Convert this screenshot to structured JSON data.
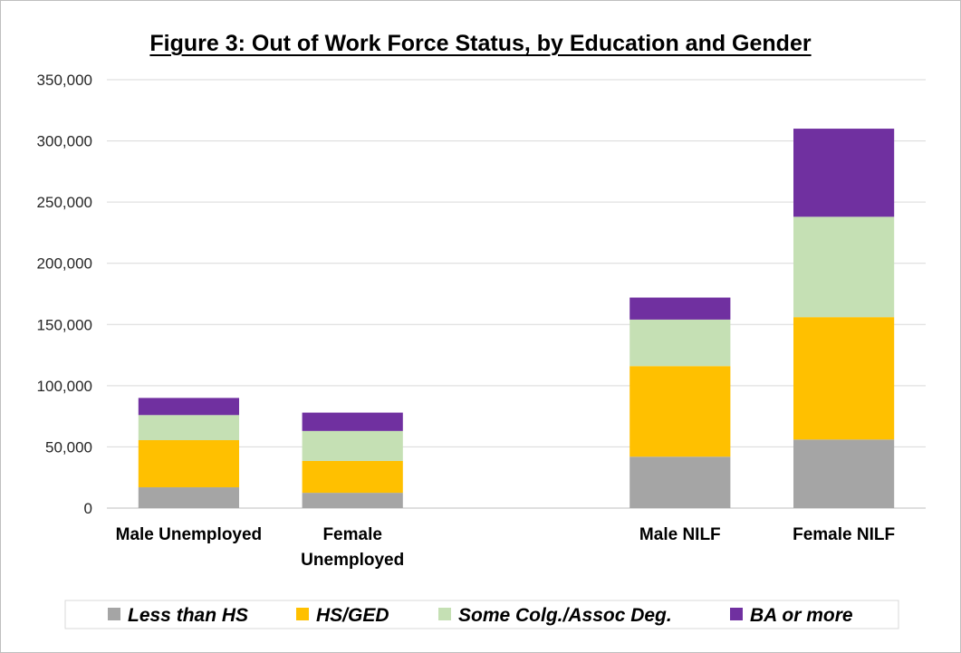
{
  "chart_data": {
    "type": "bar",
    "stacked": true,
    "title": "Figure 3: Out of Work Force Status, by Education and Gender",
    "categories": [
      [
        "Male Unemployed"
      ],
      [
        "Female",
        "Unemployed"
      ],
      [],
      [
        "Male NILF"
      ],
      [
        "Female NILF"
      ]
    ],
    "series": [
      {
        "name": "Less than HS",
        "color": "#a5a5a5",
        "values": [
          17000,
          12500,
          null,
          42000,
          56000
        ]
      },
      {
        "name": "HS/GED",
        "color": "#ffc000",
        "values": [
          38500,
          26000,
          null,
          74000,
          100000
        ]
      },
      {
        "name": "Some Colg./Assoc Deg.",
        "color": "#c5e0b4",
        "values": [
          20500,
          24500,
          null,
          38000,
          82000
        ]
      },
      {
        "name": "BA or more",
        "color": "#7030a0",
        "values": [
          14000,
          15000,
          null,
          18000,
          72000
        ]
      }
    ],
    "ylim": [
      0,
      350000
    ],
    "yticks": [
      "0",
      "50,000",
      "100,000",
      "150,000",
      "200,000",
      "250,000",
      "300,000",
      "350,000"
    ],
    "grid": true,
    "legend": "bottom"
  }
}
